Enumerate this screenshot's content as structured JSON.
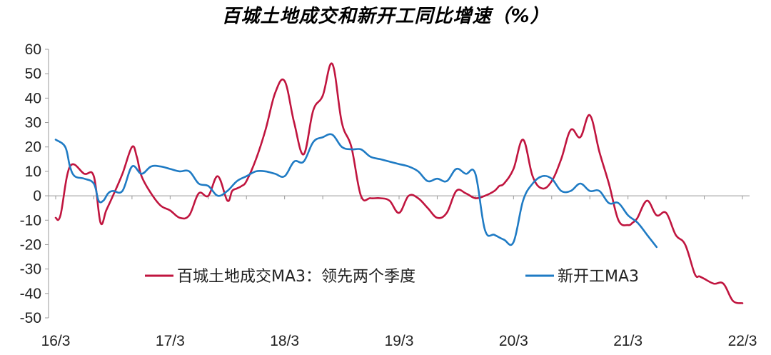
{
  "chart_data": {
    "type": "line",
    "title": "百城土地成交和新开工同比增速（%）",
    "xlabel": "",
    "ylabel": "",
    "ylim": [
      -50,
      60
    ],
    "yticks": [
      60,
      50,
      40,
      30,
      20,
      10,
      0,
      -10,
      -20,
      -30,
      -40,
      -50
    ],
    "xlim": [
      0,
      72
    ],
    "x_tick_labels": [
      "16/3",
      "17/3",
      "18/3",
      "19/3",
      "20/3",
      "21/3",
      "22/3"
    ],
    "x_unit": "month index starting 16/3",
    "grid": false,
    "legend_position": "bottom-center",
    "series": [
      {
        "name": "百城土地成交MA3：领先两个季度",
        "color": "#c0153f",
        "x": [
          0,
          0.5,
          1.5,
          3,
          4,
          4.7,
          5.3,
          6,
          7,
          8,
          8.5,
          9,
          10,
          11,
          12,
          13,
          14,
          15,
          16,
          17,
          18,
          18.5,
          19,
          19.5,
          20,
          21,
          22,
          23,
          24,
          25,
          26,
          27,
          28,
          29,
          30,
          31,
          32,
          33,
          34,
          35,
          36,
          37,
          38,
          39,
          40,
          41,
          42,
          43,
          44,
          45,
          46,
          46.5,
          47,
          48,
          49,
          50,
          51,
          52,
          53,
          54,
          55,
          56,
          57,
          58,
          59,
          60,
          60.5,
          61,
          62,
          63,
          64,
          65,
          66,
          67,
          67.5,
          68,
          69,
          70,
          71,
          72
        ],
        "y": [
          -9,
          -8,
          12,
          9,
          8,
          -11,
          -6,
          0,
          9,
          20,
          16,
          8,
          1,
          -4,
          -6,
          -9,
          -8,
          1,
          0,
          8,
          -2,
          2,
          3,
          4,
          6,
          15,
          27,
          42,
          47,
          30,
          17,
          35,
          41,
          54,
          30,
          20,
          0,
          -1,
          -1,
          -2,
          -7,
          0,
          -1,
          -5,
          -9,
          -7,
          2,
          1,
          -1,
          0,
          2,
          4,
          5,
          11,
          23,
          8,
          3,
          6,
          15,
          27,
          24,
          33,
          18,
          5,
          -10,
          -12,
          -11,
          -9,
          -2,
          -8,
          -7,
          -16,
          -20,
          -32,
          -33,
          -34,
          -36,
          -36,
          -43,
          -44
        ]
      },
      {
        "name": "新开工MA3",
        "color": "#1f7bc4",
        "x": [
          0,
          1,
          1.5,
          2,
          3,
          4,
          4.5,
          5,
          5.5,
          6,
          7,
          8,
          9,
          10,
          11,
          12,
          13,
          14,
          15,
          16,
          17,
          18,
          19,
          20,
          21,
          22,
          23,
          24,
          25,
          26,
          27,
          28,
          29,
          30,
          31,
          32,
          33,
          34,
          35,
          36,
          37,
          38,
          39,
          40,
          41,
          42,
          43,
          44,
          45,
          46,
          47,
          48,
          49,
          50,
          51,
          52,
          53,
          54,
          55,
          56,
          57,
          58,
          59,
          60,
          61,
          62,
          63
        ],
        "y": [
          23,
          20,
          12,
          8,
          7,
          5,
          -2,
          -2,
          1,
          2,
          2,
          12,
          9,
          12,
          12,
          11,
          10,
          10,
          5,
          4,
          0,
          2,
          6,
          8,
          10,
          10,
          9,
          8,
          14,
          14,
          22,
          24,
          25,
          20,
          19,
          19,
          16,
          15,
          14,
          13,
          12,
          10,
          6,
          7,
          6,
          11,
          9,
          9,
          -14,
          -16,
          -18,
          -19,
          -2,
          5,
          8,
          7,
          2,
          2,
          5,
          2,
          2,
          -3,
          -3,
          -8,
          -11,
          -16,
          -21
        ]
      }
    ]
  }
}
